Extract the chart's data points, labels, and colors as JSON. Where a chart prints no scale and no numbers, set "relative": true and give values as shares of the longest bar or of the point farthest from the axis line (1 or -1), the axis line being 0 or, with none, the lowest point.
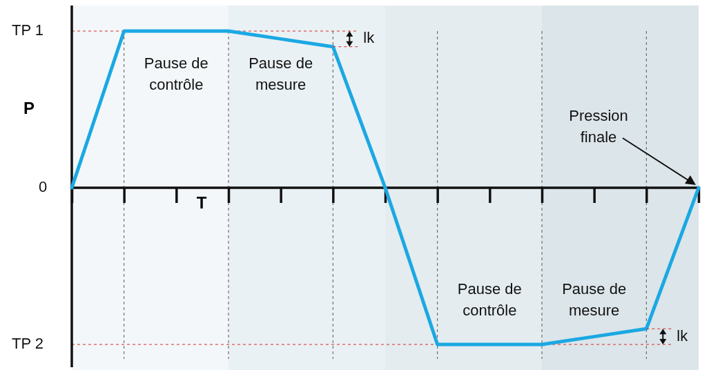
{
  "chart_data": {
    "type": "line",
    "relative": true,
    "xlabel": "T",
    "ylabel": "P",
    "grid": "x",
    "categories": [
      null,
      null,
      null,
      null,
      null,
      null,
      null,
      null,
      null,
      null,
      null,
      null,
      null
    ],
    "series": [
      {
        "color": "#1ba8e3",
        "values": [
          0,
          1,
          1,
          1,
          0.95,
          0.9,
          0,
          -1,
          -1,
          -1,
          -0.95,
          -0.9,
          0
        ]
      }
    ],
    "ref_lines": [
      {
        "axis": "y",
        "value": 1,
        "label": "TP 1",
        "color": "#d62b2b",
        "line_style": "dashed"
      },
      {
        "axis": "y",
        "value": -1,
        "label": "TP 2",
        "color": "#d62b2b",
        "line_style": "dashed"
      }
    ],
    "annotations": [
      "0",
      "Pause de\ncontrôle",
      "Pause de\nmesure",
      "Pause de\ncontrôle",
      "Pause de\nmesure",
      "lk",
      "lk",
      "Pression\nfinale"
    ]
  }
}
